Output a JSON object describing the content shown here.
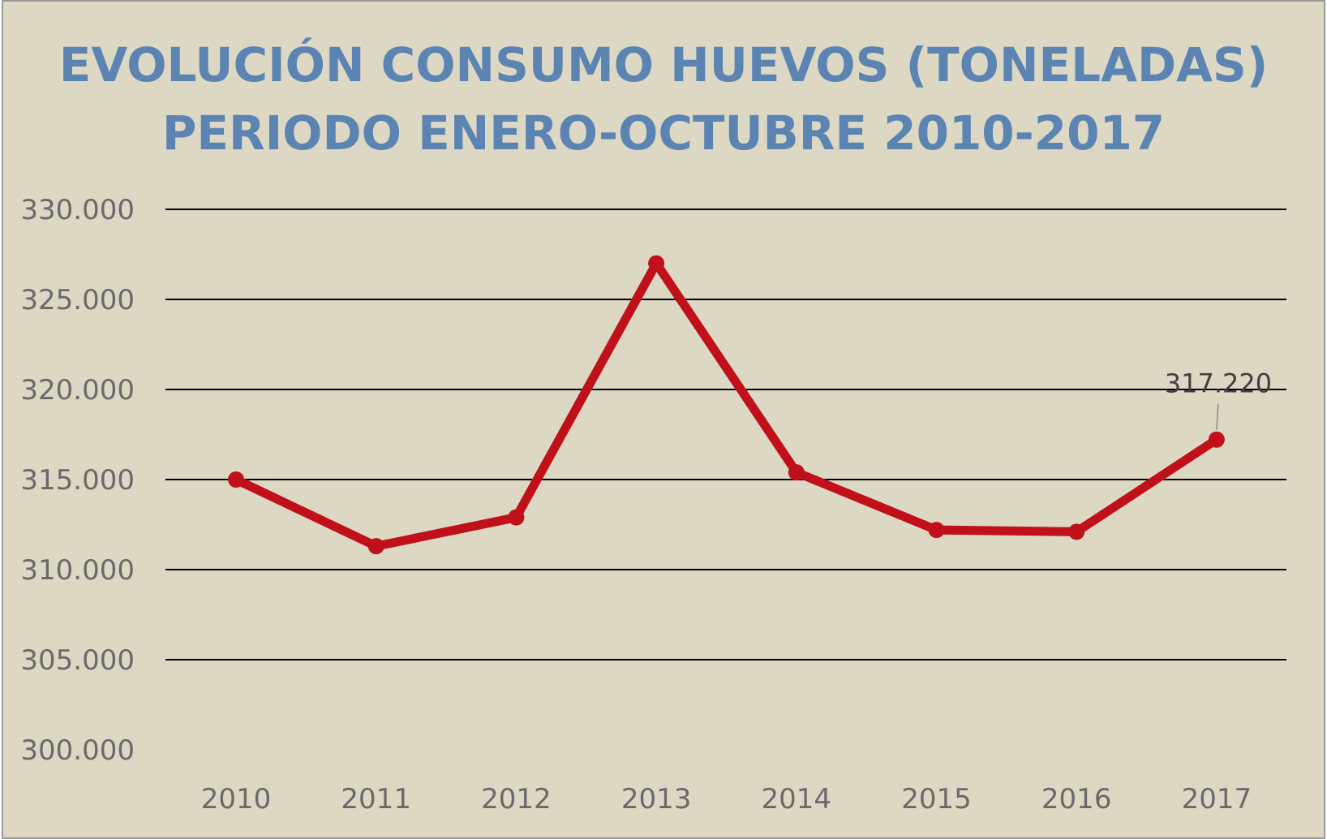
{
  "chart_data": {
    "type": "line",
    "title": "EVOLUCIÓN CONSUMO HUEVOS (TONELADAS)",
    "subtitle": "PERIODO ENERO-OCTUBRE 2010-2017",
    "categories": [
      "2010",
      "2011",
      "2012",
      "2013",
      "2014",
      "2015",
      "2016",
      "2017"
    ],
    "series": [
      {
        "values": [
          315000,
          311300,
          312900,
          327000,
          315400,
          312200,
          312100,
          317220
        ],
        "color": "#c0101a"
      }
    ],
    "y_ticks": [
      "330.000",
      "325.000",
      "320.000",
      "315.000",
      "310.000",
      "305.000",
      "300.000"
    ],
    "ylim": [
      300000,
      330000
    ],
    "data_labels": [
      {
        "index": 7,
        "text": "317.220"
      }
    ],
    "grid": true,
    "legend": "none",
    "background_color": "#ddd8c4",
    "gridline_color": "#000000"
  }
}
